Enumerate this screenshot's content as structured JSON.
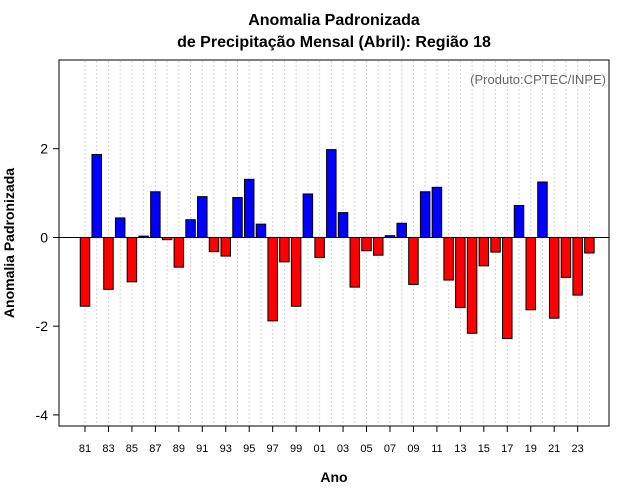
{
  "chart_data": {
    "type": "bar",
    "title_line1": "Anomalia Padronizada",
    "title_line2": "de Precipitação Mensal (Abril): Região 18",
    "xlabel": "Ano",
    "ylabel": "Anomalia Padronizada",
    "annotation": "(Produto:CPTEC/INPE)",
    "ylim": [
      -4.25,
      4.0
    ],
    "yticks": [
      -4,
      -2,
      0,
      2
    ],
    "ytick_labels": [
      "-4",
      "-2",
      "0",
      "2"
    ],
    "years": [
      "81",
      "82",
      "83",
      "84",
      "85",
      "86",
      "87",
      "88",
      "89",
      "90",
      "91",
      "92",
      "93",
      "94",
      "95",
      "96",
      "97",
      "98",
      "99",
      "00",
      "01",
      "02",
      "03",
      "04",
      "05",
      "06",
      "07",
      "08",
      "09",
      "10",
      "11",
      "12",
      "13",
      "14",
      "15",
      "16",
      "17",
      "18",
      "19",
      "20",
      "21",
      "22",
      "23",
      "24"
    ],
    "xtick_labels": [
      "81",
      "83",
      "85",
      "87",
      "89",
      "91",
      "93",
      "95",
      "97",
      "99",
      "01",
      "03",
      "05",
      "07",
      "09",
      "11",
      "13",
      "15",
      "17",
      "19",
      "21",
      "23"
    ],
    "values": [
      -1.55,
      1.87,
      -1.17,
      0.44,
      -1.0,
      0.03,
      1.03,
      -0.05,
      -0.67,
      0.4,
      0.92,
      -0.32,
      -0.42,
      0.9,
      1.31,
      0.3,
      -1.88,
      -0.55,
      -1.55,
      0.98,
      -0.45,
      1.98,
      0.56,
      -1.12,
      -0.3,
      -0.4,
      0.04,
      0.32,
      -1.06,
      1.03,
      1.13,
      -0.96,
      -1.58,
      -2.16,
      -0.64,
      -0.33,
      -2.28,
      0.72,
      -1.63,
      1.25,
      -1.82,
      -0.9,
      -1.3,
      -0.35
    ],
    "colors": {
      "positive": "#0000ff",
      "negative": "#ff0000",
      "grid": "#d3d3d3"
    }
  }
}
